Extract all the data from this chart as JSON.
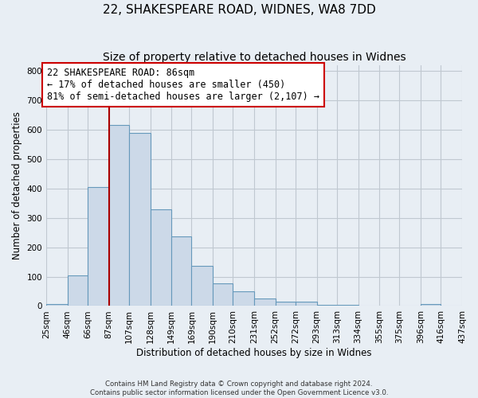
{
  "title": "22, SHAKESPEARE ROAD, WIDNES, WA8 7DD",
  "subtitle": "Size of property relative to detached houses in Widnes",
  "xlabel": "Distribution of detached houses by size in Widnes",
  "ylabel": "Number of detached properties",
  "footer_lines": [
    "Contains HM Land Registry data © Crown copyright and database right 2024.",
    "Contains public sector information licensed under the Open Government Licence v3.0."
  ],
  "bin_edges": [
    25,
    46,
    66,
    87,
    107,
    128,
    149,
    169,
    190,
    210,
    231,
    252,
    272,
    293,
    313,
    334,
    355,
    375,
    396,
    416,
    437
  ],
  "bin_labels": [
    "25sqm",
    "46sqm",
    "66sqm",
    "87sqm",
    "107sqm",
    "128sqm",
    "149sqm",
    "169sqm",
    "190sqm",
    "210sqm",
    "231sqm",
    "252sqm",
    "272sqm",
    "293sqm",
    "313sqm",
    "334sqm",
    "355sqm",
    "375sqm",
    "396sqm",
    "416sqm",
    "437sqm"
  ],
  "counts": [
    7,
    105,
    405,
    615,
    590,
    330,
    237,
    136,
    76,
    50,
    25,
    15,
    15,
    3,
    3,
    0,
    0,
    0,
    8,
    0
  ],
  "bar_color": "#ccd9e8",
  "bar_edge_color": "#6699bb",
  "bar_edge_width": 0.8,
  "property_line_x": 87,
  "property_line_color": "#aa0000",
  "annotation_box_color": "#cc0000",
  "annotation_text_line1": "22 SHAKESPEARE ROAD: 86sqm",
  "annotation_text_line2": "← 17% of detached houses are smaller (450)",
  "annotation_text_line3": "81% of semi-detached houses are larger (2,107) →",
  "ylim": [
    0,
    820
  ],
  "yticks": [
    0,
    100,
    200,
    300,
    400,
    500,
    600,
    700,
    800
  ],
  "background_color": "#e8eef4",
  "plot_background_color": "#e8eef4",
  "grid_color": "#c0c8d0",
  "title_fontsize": 11,
  "subtitle_fontsize": 10,
  "axis_label_fontsize": 8.5,
  "tick_label_fontsize": 7.5,
  "annotation_fontsize": 8.5
}
